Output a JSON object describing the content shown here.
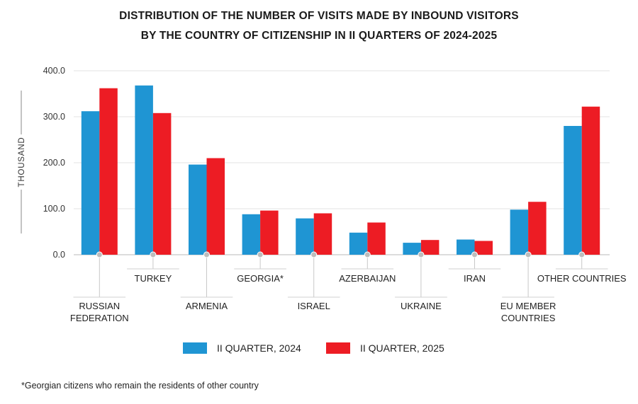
{
  "title_line1": "DISTRIBUTION OF THE NUMBER OF VISITS MADE BY INBOUND VISITORS",
  "title_line2": "BY THE COUNTRY OF CITIZENSHIP IN II QUARTERS OF 2024-2025",
  "footnote": "*Georgian citizens who remain the residents of other country",
  "colors": {
    "series_2024": "#1f95d3",
    "series_2025": "#ed1c24",
    "grid": "#e3e3e3",
    "axis": "#b8b8b8"
  },
  "chart_data": {
    "type": "bar",
    "ylabel": "THOUSAND",
    "ylim": [
      0,
      400
    ],
    "yticks": [
      "0.0",
      "100.0",
      "200.0",
      "300.0",
      "400.0"
    ],
    "grid": true,
    "legend_position": "bottom",
    "categories": [
      [
        "RUSSIAN",
        "FEDERATION"
      ],
      [
        "TURKEY"
      ],
      [
        "ARMENIA"
      ],
      [
        "GEORGIA*"
      ],
      [
        "ISRAEL"
      ],
      [
        "AZERBAIJAN"
      ],
      [
        "UKRAINE"
      ],
      [
        "IRAN"
      ],
      [
        "EU MEMBER",
        "COUNTRIES"
      ],
      [
        "OTHER COUNTRIES"
      ]
    ],
    "series": [
      {
        "name": "II QUARTER, 2024",
        "values": [
          312,
          368,
          196,
          88,
          79,
          48,
          26,
          33,
          98,
          280
        ]
      },
      {
        "name": "II QUARTER, 2025",
        "values": [
          362,
          308,
          210,
          96,
          90,
          70,
          32,
          30,
          115,
          322
        ]
      }
    ]
  }
}
